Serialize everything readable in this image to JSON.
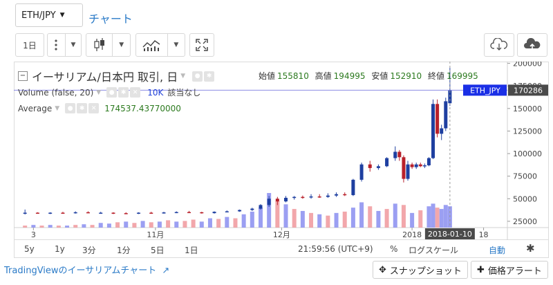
{
  "header": {
    "symbol": "ETH/JPY",
    "chart_link": "チャート"
  },
  "toolbar": {
    "interval": "1日",
    "icons": [
      "more-vertical-icon",
      "candlestick-icon",
      "indicators-icon",
      "fullscreen-icon",
      "download-icon",
      "upload-icon"
    ]
  },
  "legend": {
    "title": "イーサリアム/日本円 取引, 日",
    "open_label": "始値",
    "open": "155810",
    "high_label": "高値",
    "high": "194995",
    "low_label": "安値",
    "low": "152910",
    "close_label": "終値",
    "close": "169995",
    "volume_label": "Volume (false, 20)",
    "volume_value": "10K",
    "volume_note": "該当なし",
    "average_label": "Average",
    "average_value": "174537.43770000"
  },
  "colors": {
    "up": "#1e3fa0",
    "down": "#b8202a",
    "vol_up": "#8a8ef0",
    "vol_down": "#f0989c",
    "tag_bg": "#1a2fe6",
    "price_tag_bg": "#4a4a4a"
  },
  "bottom": {
    "ranges": [
      "5y",
      "1y",
      "3分",
      "1分",
      "5日",
      "1日"
    ],
    "time": "21:59:56 (UTC+9)",
    "percent": "%",
    "log": "ログスケール",
    "auto": "自動"
  },
  "footer": {
    "link": "TradingViewのイーサリアムチャート",
    "snapshot": "スナップショット",
    "alert": "価格アラート"
  },
  "chart_data": {
    "type": "candlestick",
    "symbol_tag": "ETH_JPY",
    "last_price_label": "170286",
    "last_price": 170286,
    "crosshair_date_label": "2018-01-10",
    "y_ticks": [
      25000,
      50000,
      75000,
      100000,
      125000,
      150000,
      175000,
      200000
    ],
    "y_tick_labels": [
      "25000",
      "50000",
      "75000",
      "100000",
      "125000",
      "150000",
      "175000",
      "200000"
    ],
    "ylim": [
      18000,
      202000
    ],
    "x_tick_labels": [
      "3",
      "11月",
      "12月",
      "2018",
      "18"
    ],
    "x_tick_dates": [
      "2017-10-03",
      "2017-11-01",
      "2017-12-01",
      "2018-01-01",
      "2018-01-18"
    ],
    "xlim": [
      "2017-09-29",
      "2018-01-23"
    ],
    "candles": [
      {
        "d": "2017-10-01",
        "o": 34000,
        "h": 38000,
        "l": 32500,
        "c": 34500
      },
      {
        "d": "2017-10-04",
        "o": 34500,
        "h": 35000,
        "l": 33500,
        "c": 34000
      },
      {
        "d": "2017-10-07",
        "o": 34000,
        "h": 35000,
        "l": 33000,
        "c": 34500
      },
      {
        "d": "2017-10-10",
        "o": 34500,
        "h": 35500,
        "l": 33500,
        "c": 34000
      },
      {
        "d": "2017-10-13",
        "o": 34000,
        "h": 36000,
        "l": 33500,
        "c": 35000
      },
      {
        "d": "2017-10-16",
        "o": 35000,
        "h": 36000,
        "l": 34000,
        "c": 34500
      },
      {
        "d": "2017-10-19",
        "o": 34500,
        "h": 35500,
        "l": 33500,
        "c": 34500
      },
      {
        "d": "2017-10-22",
        "o": 34500,
        "h": 35000,
        "l": 33000,
        "c": 34000
      },
      {
        "d": "2017-10-25",
        "o": 34000,
        "h": 35000,
        "l": 33000,
        "c": 33800
      },
      {
        "d": "2017-10-28",
        "o": 33800,
        "h": 35000,
        "l": 33000,
        "c": 34500
      },
      {
        "d": "2017-10-31",
        "o": 34500,
        "h": 35500,
        "l": 33500,
        "c": 34000
      },
      {
        "d": "2017-11-03",
        "o": 34000,
        "h": 35500,
        "l": 33500,
        "c": 34800
      },
      {
        "d": "2017-11-06",
        "o": 34800,
        "h": 36000,
        "l": 34000,
        "c": 35200
      },
      {
        "d": "2017-11-09",
        "o": 35200,
        "h": 36500,
        "l": 34500,
        "c": 35000
      },
      {
        "d": "2017-11-12",
        "o": 35000,
        "h": 35500,
        "l": 33500,
        "c": 34000
      },
      {
        "d": "2017-11-15",
        "o": 34000,
        "h": 36000,
        "l": 33500,
        "c": 35500
      },
      {
        "d": "2017-11-18",
        "o": 35500,
        "h": 37000,
        "l": 35000,
        "c": 36000
      },
      {
        "d": "2017-11-21",
        "o": 36000,
        "h": 38000,
        "l": 35500,
        "c": 37500
      },
      {
        "d": "2017-11-24",
        "o": 37500,
        "h": 40000,
        "l": 36500,
        "c": 39000
      },
      {
        "d": "2017-11-26",
        "o": 39000,
        "h": 44000,
        "l": 38000,
        "c": 43000
      },
      {
        "d": "2017-11-28",
        "o": 43000,
        "h": 53000,
        "l": 41000,
        "c": 50000
      },
      {
        "d": "2017-11-30",
        "o": 50000,
        "h": 52000,
        "l": 43000,
        "c": 47000
      },
      {
        "d": "2017-12-02",
        "o": 47000,
        "h": 53000,
        "l": 46000,
        "c": 51000
      },
      {
        "d": "2017-12-04",
        "o": 51000,
        "h": 53000,
        "l": 49000,
        "c": 52000
      },
      {
        "d": "2017-12-06",
        "o": 52000,
        "h": 53500,
        "l": 50000,
        "c": 51500
      },
      {
        "d": "2017-12-08",
        "o": 51500,
        "h": 55000,
        "l": 50000,
        "c": 52500
      },
      {
        "d": "2017-12-10",
        "o": 52500,
        "h": 55000,
        "l": 51000,
        "c": 52000
      },
      {
        "d": "2017-12-12",
        "o": 52000,
        "h": 56000,
        "l": 51000,
        "c": 53500
      },
      {
        "d": "2017-12-14",
        "o": 53500,
        "h": 57000,
        "l": 52000,
        "c": 55000
      },
      {
        "d": "2017-12-16",
        "o": 55000,
        "h": 57000,
        "l": 53000,
        "c": 54000
      },
      {
        "d": "2017-12-18",
        "o": 54000,
        "h": 72000,
        "l": 53000,
        "c": 71000
      },
      {
        "d": "2017-12-20",
        "o": 71000,
        "h": 90000,
        "l": 69000,
        "c": 88000
      },
      {
        "d": "2017-12-22",
        "o": 88000,
        "h": 92000,
        "l": 80000,
        "c": 84000
      },
      {
        "d": "2017-12-24",
        "o": 84000,
        "h": 88000,
        "l": 82000,
        "c": 86000
      },
      {
        "d": "2017-12-26",
        "o": 86000,
        "h": 96000,
        "l": 85000,
        "c": 95000
      },
      {
        "d": "2017-12-28",
        "o": 95000,
        "h": 108000,
        "l": 92000,
        "c": 102000
      },
      {
        "d": "2017-12-29",
        "o": 102000,
        "h": 104000,
        "l": 92000,
        "c": 96000
      },
      {
        "d": "2017-12-30",
        "o": 96000,
        "h": 98000,
        "l": 68000,
        "c": 72000
      },
      {
        "d": "2017-12-31",
        "o": 72000,
        "h": 92000,
        "l": 70000,
        "c": 88000
      },
      {
        "d": "2018-01-01",
        "o": 88000,
        "h": 90000,
        "l": 83000,
        "c": 85000
      },
      {
        "d": "2018-01-02",
        "o": 85000,
        "h": 90000,
        "l": 83000,
        "c": 88000
      },
      {
        "d": "2018-01-03",
        "o": 88000,
        "h": 90000,
        "l": 85000,
        "c": 86000
      },
      {
        "d": "2018-01-04",
        "o": 86000,
        "h": 89000,
        "l": 84000,
        "c": 87000
      },
      {
        "d": "2018-01-05",
        "o": 87000,
        "h": 96000,
        "l": 86000,
        "c": 95000
      },
      {
        "d": "2018-01-06",
        "o": 95000,
        "h": 160000,
        "l": 94000,
        "c": 155000
      },
      {
        "d": "2018-01-07",
        "o": 155000,
        "h": 160000,
        "l": 118000,
        "c": 122000
      },
      {
        "d": "2018-01-08",
        "o": 122000,
        "h": 132000,
        "l": 115000,
        "c": 128000
      },
      {
        "d": "2018-01-09",
        "o": 128000,
        "h": 162000,
        "l": 125000,
        "c": 158000
      },
      {
        "d": "2018-01-10",
        "o": 155810,
        "h": 194995,
        "l": 152910,
        "c": 169995
      }
    ],
    "volumes": [
      {
        "d": "2017-10-01",
        "v": 3,
        "up": false
      },
      {
        "d": "2017-10-03",
        "v": 4,
        "up": true
      },
      {
        "d": "2017-10-05",
        "v": 3,
        "up": false
      },
      {
        "d": "2017-10-07",
        "v": 4,
        "up": true
      },
      {
        "d": "2017-10-09",
        "v": 3,
        "up": false
      },
      {
        "d": "2017-10-11",
        "v": 3,
        "up": true
      },
      {
        "d": "2017-10-13",
        "v": 4,
        "up": false
      },
      {
        "d": "2017-10-15",
        "v": 5,
        "up": true
      },
      {
        "d": "2017-10-17",
        "v": 4,
        "up": false
      },
      {
        "d": "2017-10-19",
        "v": 7,
        "up": true
      },
      {
        "d": "2017-10-21",
        "v": 6,
        "up": true
      },
      {
        "d": "2017-10-23",
        "v": 8,
        "up": false
      },
      {
        "d": "2017-10-25",
        "v": 9,
        "up": true
      },
      {
        "d": "2017-10-27",
        "v": 7,
        "up": false
      },
      {
        "d": "2017-10-29",
        "v": 10,
        "up": true
      },
      {
        "d": "2017-10-31",
        "v": 8,
        "up": false
      },
      {
        "d": "2017-11-02",
        "v": 9,
        "up": true
      },
      {
        "d": "2017-11-04",
        "v": 11,
        "up": false
      },
      {
        "d": "2017-11-06",
        "v": 9,
        "up": true
      },
      {
        "d": "2017-11-08",
        "v": 10,
        "up": false
      },
      {
        "d": "2017-11-10",
        "v": 12,
        "up": false
      },
      {
        "d": "2017-11-12",
        "v": 9,
        "up": true
      },
      {
        "d": "2017-11-14",
        "v": 14,
        "up": true
      },
      {
        "d": "2017-11-16",
        "v": 13,
        "up": false
      },
      {
        "d": "2017-11-18",
        "v": 16,
        "up": true
      },
      {
        "d": "2017-11-20",
        "v": 14,
        "up": false
      },
      {
        "d": "2017-11-22",
        "v": 20,
        "up": true
      },
      {
        "d": "2017-11-24",
        "v": 24,
        "up": true
      },
      {
        "d": "2017-11-26",
        "v": 30,
        "up": true
      },
      {
        "d": "2017-11-28",
        "v": 52,
        "up": true
      },
      {
        "d": "2017-11-30",
        "v": 40,
        "up": false
      },
      {
        "d": "2017-12-02",
        "v": 35,
        "up": true
      },
      {
        "d": "2017-12-04",
        "v": 28,
        "up": false
      },
      {
        "d": "2017-12-06",
        "v": 25,
        "up": true
      },
      {
        "d": "2017-12-08",
        "v": 22,
        "up": false
      },
      {
        "d": "2017-12-10",
        "v": 20,
        "up": true
      },
      {
        "d": "2017-12-12",
        "v": 18,
        "up": false
      },
      {
        "d": "2017-12-14",
        "v": 22,
        "up": true
      },
      {
        "d": "2017-12-16",
        "v": 24,
        "up": false
      },
      {
        "d": "2017-12-18",
        "v": 30,
        "up": true
      },
      {
        "d": "2017-12-20",
        "v": 38,
        "up": true
      },
      {
        "d": "2017-12-22",
        "v": 32,
        "up": false
      },
      {
        "d": "2017-12-24",
        "v": 25,
        "up": true
      },
      {
        "d": "2017-12-26",
        "v": 28,
        "up": false
      },
      {
        "d": "2017-12-28",
        "v": 36,
        "up": true
      },
      {
        "d": "2017-12-30",
        "v": 34,
        "up": false
      },
      {
        "d": "2018-01-01",
        "v": 22,
        "up": true
      },
      {
        "d": "2018-01-03",
        "v": 26,
        "up": false
      },
      {
        "d": "2018-01-05",
        "v": 32,
        "up": true
      },
      {
        "d": "2018-01-06",
        "v": 36,
        "up": true
      },
      {
        "d": "2018-01-07",
        "v": 30,
        "up": false
      },
      {
        "d": "2018-01-08",
        "v": 28,
        "up": true
      },
      {
        "d": "2018-01-09",
        "v": 34,
        "up": true
      },
      {
        "d": "2018-01-10",
        "v": 32,
        "up": true
      }
    ]
  }
}
